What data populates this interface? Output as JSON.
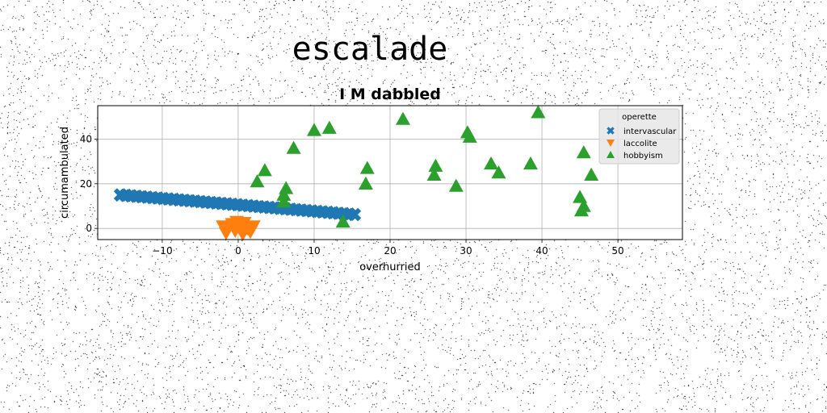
{
  "figure": {
    "suptitle": "escalade"
  },
  "chart_data": {
    "type": "scatter",
    "title": "I M dabbled",
    "xlabel": "overhurried",
    "ylabel": "circumambulated",
    "xlim": [
      -18.5,
      58.5
    ],
    "ylim": [
      -5,
      55
    ],
    "xticks": [
      -10,
      0,
      10,
      20,
      30,
      40,
      50
    ],
    "yticks": [
      0,
      20,
      40
    ],
    "grid": true,
    "legend": {
      "title": "operette",
      "placement": "top-right"
    },
    "series": [
      {
        "name": "intervascular",
        "marker": "x-filled",
        "color": "#1f77b4",
        "points": [
          [
            -15.5,
            15.0
          ],
          [
            -14.8,
            14.8
          ],
          [
            -14.1,
            14.6
          ],
          [
            -13.4,
            14.4
          ],
          [
            -12.7,
            14.2
          ],
          [
            -12.0,
            14.0
          ],
          [
            -11.3,
            13.8
          ],
          [
            -10.6,
            13.6
          ],
          [
            -9.9,
            13.4
          ],
          [
            -9.2,
            13.2
          ],
          [
            -8.5,
            13.0
          ],
          [
            -7.8,
            12.8
          ],
          [
            -7.1,
            12.6
          ],
          [
            -6.4,
            12.4
          ],
          [
            -5.7,
            12.2
          ],
          [
            -5.0,
            12.0
          ],
          [
            -4.3,
            11.8
          ],
          [
            -3.6,
            11.6
          ],
          [
            -2.9,
            11.4
          ],
          [
            -2.2,
            11.2
          ],
          [
            -1.5,
            11.0
          ],
          [
            -0.8,
            10.8
          ],
          [
            -0.1,
            10.6
          ],
          [
            0.6,
            10.4
          ],
          [
            1.3,
            10.2
          ],
          [
            2.0,
            10.0
          ],
          [
            2.7,
            9.8
          ],
          [
            3.4,
            9.6
          ],
          [
            4.1,
            9.4
          ],
          [
            4.8,
            9.2
          ],
          [
            5.5,
            9.0
          ],
          [
            6.2,
            8.8
          ],
          [
            6.9,
            8.6
          ],
          [
            7.6,
            8.4
          ],
          [
            8.3,
            8.2
          ],
          [
            9.0,
            8.0
          ],
          [
            9.7,
            7.8
          ],
          [
            10.4,
            7.6
          ],
          [
            11.1,
            7.4
          ],
          [
            11.8,
            7.2
          ],
          [
            12.5,
            7.0
          ],
          [
            13.2,
            6.8
          ],
          [
            13.9,
            6.6
          ],
          [
            14.6,
            6.4
          ],
          [
            15.3,
            6.2
          ]
        ]
      },
      {
        "name": "laccolite",
        "marker": "triangle-down",
        "color": "#ff7f0e",
        "points": [
          [
            -2.0,
            1.0
          ],
          [
            -1.6,
            -2.0
          ],
          [
            -1.2,
            0.5
          ],
          [
            -0.8,
            2.0
          ],
          [
            -0.4,
            -1.0
          ],
          [
            0.0,
            1.5
          ],
          [
            0.4,
            -0.5
          ],
          [
            0.8,
            2.5
          ],
          [
            1.2,
            0.0
          ],
          [
            1.6,
            -1.5
          ],
          [
            2.0,
            1.0
          ],
          [
            -0.2,
            3.0
          ],
          [
            0.6,
            -2.5
          ]
        ]
      },
      {
        "name": "hobbyism",
        "marker": "triangle-up",
        "color": "#2ca02c",
        "points": [
          [
            2.5,
            21
          ],
          [
            3.5,
            26
          ],
          [
            6,
            12
          ],
          [
            6,
            15
          ],
          [
            6.3,
            18
          ],
          [
            7.3,
            36
          ],
          [
            10,
            44
          ],
          [
            12,
            45
          ],
          [
            13.8,
            3
          ],
          [
            16.8,
            20
          ],
          [
            17,
            27
          ],
          [
            21.7,
            49
          ],
          [
            25.8,
            24
          ],
          [
            26,
            28
          ],
          [
            28.7,
            19
          ],
          [
            30.2,
            43
          ],
          [
            30.5,
            41
          ],
          [
            33.3,
            29
          ],
          [
            34.3,
            25
          ],
          [
            38.5,
            29
          ],
          [
            39.5,
            52
          ],
          [
            45,
            14
          ],
          [
            45.2,
            8
          ],
          [
            45.5,
            10
          ],
          [
            45.5,
            34
          ],
          [
            46.5,
            24
          ]
        ]
      }
    ]
  }
}
